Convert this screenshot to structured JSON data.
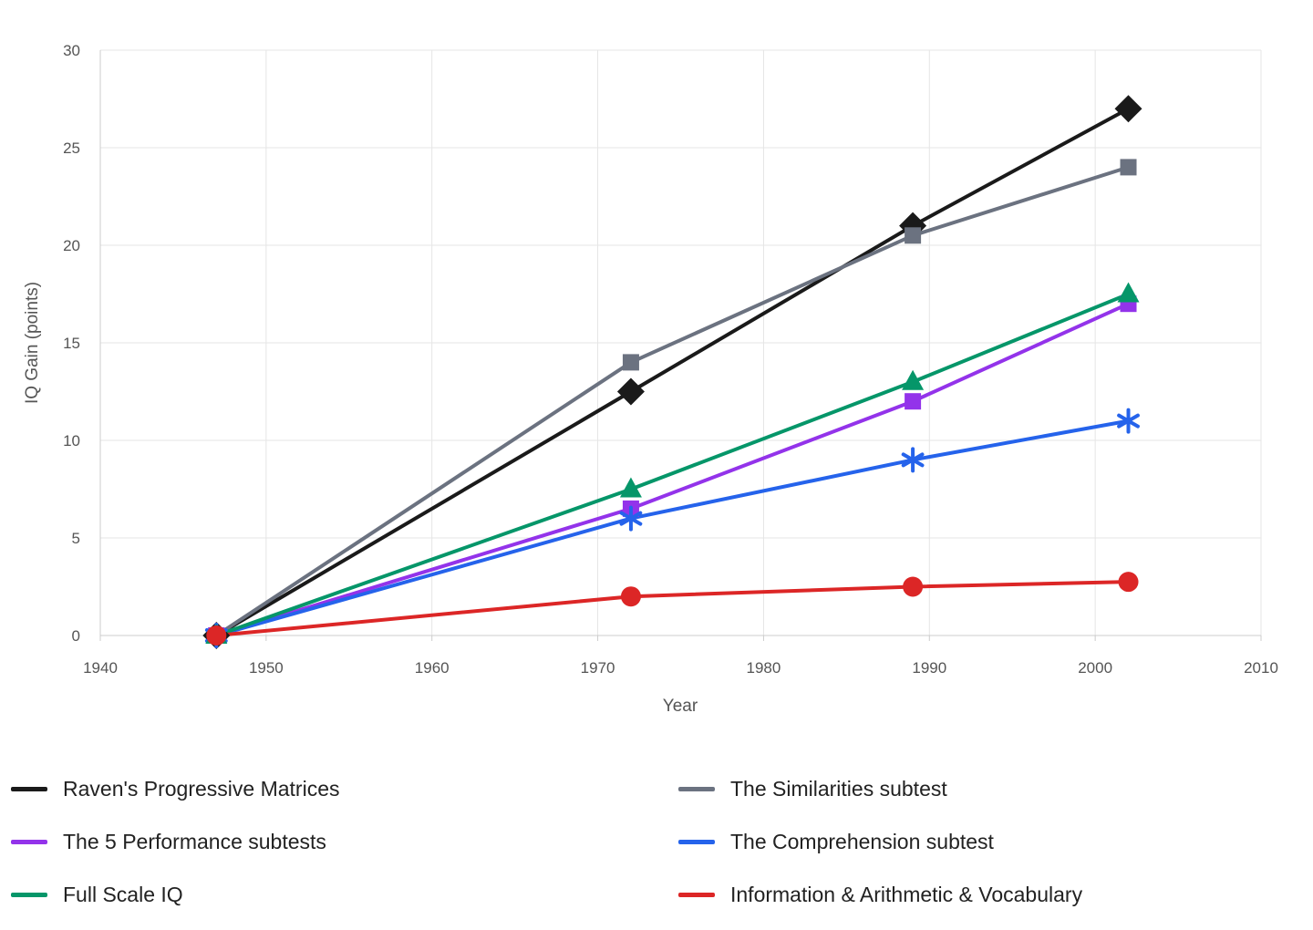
{
  "chart_data": {
    "type": "line",
    "title": "",
    "xlabel": "Year",
    "ylabel": "IQ Gain (points)",
    "xlim": [
      1940,
      2010
    ],
    "ylim": [
      0,
      30
    ],
    "x_ticks": [
      1940,
      1950,
      1960,
      1970,
      1980,
      1990,
      2000,
      2010
    ],
    "y_ticks": [
      0,
      5,
      10,
      15,
      20,
      25,
      30
    ],
    "grid": true,
    "legend_position": "bottom",
    "series": [
      {
        "name": "Raven's Progressive Matrices",
        "color": "#1a1a1a",
        "marker": "diamond",
        "points": [
          [
            1947,
            0
          ],
          [
            1972,
            12.5
          ],
          [
            1989,
            21
          ],
          [
            2002,
            27
          ]
        ]
      },
      {
        "name": "The Similarities subtest",
        "color": "#6b7280",
        "marker": "square",
        "points": [
          [
            1947,
            0
          ],
          [
            1972,
            14
          ],
          [
            1989,
            20.5
          ],
          [
            2002,
            24
          ]
        ]
      },
      {
        "name": "The 5 Performance subtests",
        "color": "#9333ea",
        "marker": "square",
        "points": [
          [
            1947,
            0
          ],
          [
            1972,
            6.5
          ],
          [
            1989,
            12
          ],
          [
            2002,
            17
          ]
        ]
      },
      {
        "name": "The Comprehension subtest",
        "color": "#2563eb",
        "marker": "asterisk",
        "points": [
          [
            1947,
            0
          ],
          [
            1972,
            6
          ],
          [
            1989,
            9
          ],
          [
            2002,
            11
          ]
        ]
      },
      {
        "name": "Full Scale IQ",
        "color": "#059669",
        "marker": "triangle",
        "points": [
          [
            1947,
            0
          ],
          [
            1972,
            7.5
          ],
          [
            1989,
            13
          ],
          [
            2002,
            17.5
          ]
        ]
      },
      {
        "name": "Information & Arithmetic & Vocabulary",
        "color": "#dc2626",
        "marker": "circle",
        "points": [
          [
            1947,
            0
          ],
          [
            1972,
            2
          ],
          [
            1989,
            2.5
          ],
          [
            2002,
            2.75
          ]
        ]
      }
    ]
  }
}
